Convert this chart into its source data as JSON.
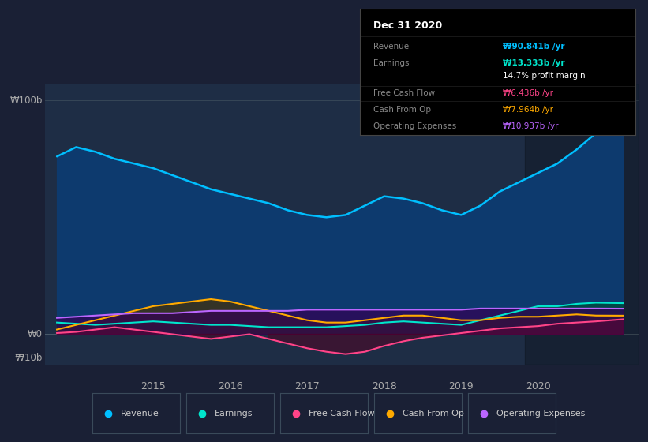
{
  "bg_color": "#1a2035",
  "chart_bg": "#1e2d45",
  "title": "Dec 31 2020",
  "ylabel_100": "₩100b",
  "ylabel_0": "₩0",
  "ylabel_neg10": "-₩10b",
  "ylim": [
    -13,
    107
  ],
  "xlim": [
    2013.6,
    2021.3
  ],
  "xticks": [
    2015,
    2016,
    2017,
    2018,
    2019,
    2020
  ],
  "revenue_color": "#00bfff",
  "earnings_color": "#00e5cc",
  "fcf_color": "#ff4488",
  "cashfromop_color": "#ffaa00",
  "opex_color": "#bb66ff",
  "revenue_data": {
    "x": [
      2013.75,
      2014.0,
      2014.25,
      2014.5,
      2014.75,
      2015.0,
      2015.25,
      2015.5,
      2015.75,
      2016.0,
      2016.25,
      2016.5,
      2016.75,
      2017.0,
      2017.25,
      2017.5,
      2017.75,
      2018.0,
      2018.25,
      2018.5,
      2018.75,
      2019.0,
      2019.25,
      2019.5,
      2019.75,
      2020.0,
      2020.25,
      2020.5,
      2020.75,
      2021.1
    ],
    "y": [
      76,
      80,
      78,
      75,
      73,
      71,
      68,
      65,
      62,
      60,
      58,
      56,
      53,
      51,
      50,
      51,
      55,
      59,
      58,
      56,
      53,
      51,
      55,
      61,
      65,
      69,
      73,
      79,
      86,
      91
    ]
  },
  "earnings_data": {
    "x": [
      2013.75,
      2014.0,
      2014.25,
      2014.5,
      2014.75,
      2015.0,
      2015.25,
      2015.5,
      2015.75,
      2016.0,
      2016.25,
      2016.5,
      2016.75,
      2017.0,
      2017.25,
      2017.5,
      2017.75,
      2018.0,
      2018.25,
      2018.5,
      2018.75,
      2019.0,
      2019.25,
      2019.5,
      2019.75,
      2020.0,
      2020.25,
      2020.5,
      2020.75,
      2021.1
    ],
    "y": [
      5,
      4.5,
      4,
      4.5,
      5,
      5.5,
      5,
      4.5,
      4,
      4,
      3.5,
      3,
      3,
      3,
      3,
      3.5,
      4,
      5,
      5.5,
      5,
      4.5,
      4,
      6,
      8,
      10,
      12,
      12,
      13,
      13.5,
      13.3
    ]
  },
  "fcf_data": {
    "x": [
      2013.75,
      2014.0,
      2014.25,
      2014.5,
      2014.75,
      2015.0,
      2015.25,
      2015.5,
      2015.75,
      2016.0,
      2016.25,
      2016.5,
      2016.75,
      2017.0,
      2017.25,
      2017.5,
      2017.75,
      2018.0,
      2018.25,
      2018.5,
      2018.75,
      2019.0,
      2019.25,
      2019.5,
      2019.75,
      2020.0,
      2020.25,
      2020.5,
      2020.75,
      2021.1
    ],
    "y": [
      0.5,
      1,
      2,
      3,
      2,
      1,
      0,
      -1,
      -2,
      -1,
      0,
      -2,
      -4,
      -6,
      -7.5,
      -8.5,
      -7.5,
      -5,
      -3,
      -1.5,
      -0.5,
      0.5,
      1.5,
      2.5,
      3,
      3.5,
      4.5,
      5,
      5.5,
      6.4
    ]
  },
  "cashfromop_data": {
    "x": [
      2013.75,
      2014.0,
      2014.25,
      2014.5,
      2014.75,
      2015.0,
      2015.25,
      2015.5,
      2015.75,
      2016.0,
      2016.25,
      2016.5,
      2016.75,
      2017.0,
      2017.25,
      2017.5,
      2017.75,
      2018.0,
      2018.25,
      2018.5,
      2018.75,
      2019.0,
      2019.25,
      2019.5,
      2019.75,
      2020.0,
      2020.25,
      2020.5,
      2020.75,
      2021.1
    ],
    "y": [
      2,
      4,
      6,
      8,
      10,
      12,
      13,
      14,
      15,
      14,
      12,
      10,
      8,
      6,
      5,
      5,
      6,
      7,
      8,
      8,
      7,
      6,
      6,
      7,
      7.5,
      7.5,
      8,
      8.5,
      8,
      7.96
    ]
  },
  "opex_data": {
    "x": [
      2013.75,
      2014.0,
      2014.25,
      2014.5,
      2014.75,
      2015.0,
      2015.25,
      2015.5,
      2015.75,
      2016.0,
      2016.25,
      2016.5,
      2016.75,
      2017.0,
      2017.25,
      2017.5,
      2017.75,
      2018.0,
      2018.25,
      2018.5,
      2018.75,
      2019.0,
      2019.25,
      2019.5,
      2019.75,
      2020.0,
      2020.25,
      2020.5,
      2020.75,
      2021.1
    ],
    "y": [
      7,
      7.5,
      8,
      8.5,
      9,
      9,
      9,
      9.5,
      10,
      10,
      10,
      10,
      10,
      10.5,
      10.5,
      10.5,
      10.5,
      10.5,
      10.5,
      10.5,
      10.5,
      10.5,
      11,
      11,
      11,
      11,
      11,
      11,
      11,
      10.94
    ]
  },
  "tooltip": {
    "title": "Dec 31 2020",
    "rows": [
      {
        "label": "Revenue",
        "value": "₩90.841b /yr",
        "value_color": "#00bfff",
        "bold_value": true
      },
      {
        "label": "Earnings",
        "value": "₩13.333b /yr",
        "value_color": "#00e5cc",
        "bold_value": true
      },
      {
        "label": "",
        "value": "14.7% profit margin",
        "value_color": "#ffffff",
        "bold_value": false
      },
      {
        "label": "Free Cash Flow",
        "value": "₩6.436b /yr",
        "value_color": "#ff4488",
        "bold_value": false
      },
      {
        "label": "Cash From Op",
        "value": "₩7.964b /yr",
        "value_color": "#ffaa00",
        "bold_value": false
      },
      {
        "label": "Operating Expenses",
        "value": "₩10.937b /yr",
        "value_color": "#bb66ff",
        "bold_value": false
      }
    ]
  },
  "legend_items": [
    {
      "label": "Revenue",
      "color": "#00bfff"
    },
    {
      "label": "Earnings",
      "color": "#00e5cc"
    },
    {
      "label": "Free Cash Flow",
      "color": "#ff4488"
    },
    {
      "label": "Cash From Op",
      "color": "#ffaa00"
    },
    {
      "label": "Operating Expenses",
      "color": "#bb66ff"
    }
  ],
  "highlight_x_start": 2019.83
}
